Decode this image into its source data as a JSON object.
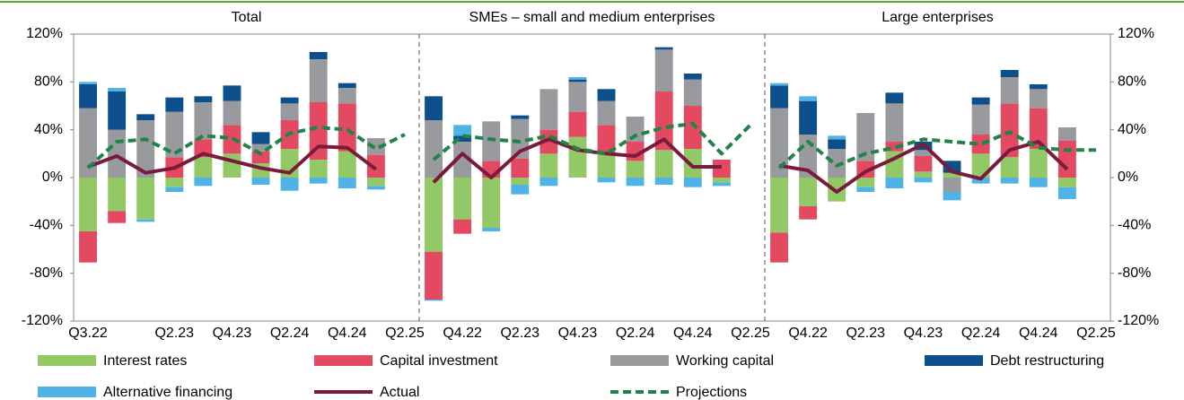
{
  "chart_data": [
    {
      "type": "bar",
      "title": "Total",
      "categories": [
        "Q3.22",
        null,
        null,
        "Q2.23",
        null,
        "Q4.23",
        null,
        "Q2.24",
        null,
        "Q4.24",
        null,
        "Q2.25"
      ],
      "ylim": [
        -120,
        120
      ],
      "yticks": [
        {
          "value": -120,
          "label": "-120%"
        },
        {
          "value": -80,
          "label": "-80%"
        },
        {
          "value": -40,
          "label": "-40%"
        },
        {
          "value": 0,
          "label": "0%"
        },
        {
          "value": 40,
          "label": "40%"
        },
        {
          "value": 80,
          "label": "80%"
        },
        {
          "value": 120,
          "label": "120%"
        }
      ],
      "series": [
        {
          "name": "Interest rates",
          "color": "#92c966",
          "values": [
            -45,
            -28,
            -35,
            -8,
            17,
            20,
            12,
            24,
            15,
            22,
            -7,
            null
          ]
        },
        {
          "name": "Capital investment",
          "color": "#e34a61",
          "values": [
            -26,
            -10,
            0,
            17,
            15,
            24,
            10,
            24,
            48,
            40,
            19,
            null
          ]
        },
        {
          "name": "Working capital",
          "color": "#999a9e",
          "values": [
            58,
            40,
            48,
            38,
            31,
            20,
            6,
            14,
            36,
            13,
            14,
            null
          ]
        },
        {
          "name": "Debt restructuring",
          "color": "#0d4f8b",
          "values": [
            20,
            32,
            5,
            12,
            5,
            13,
            10,
            5,
            6,
            4,
            0,
            null
          ]
        },
        {
          "name": "Alternative financing",
          "color": "#4fb3e6",
          "values": [
            2,
            3,
            -2,
            -4,
            -7,
            0,
            -6,
            -11,
            -5,
            -9,
            -3,
            null
          ]
        },
        {
          "name": "Actual",
          "color": "#7a1a3c",
          "type": "line",
          "values": [
            9,
            18,
            4,
            8,
            20,
            14,
            8,
            4,
            26,
            25,
            7,
            null
          ]
        },
        {
          "name": "Projections",
          "color": "#1e8449",
          "type": "line",
          "dash": true,
          "values": [
            8,
            30,
            32,
            20,
            35,
            33,
            20,
            37,
            42,
            40,
            24,
            36
          ]
        }
      ]
    },
    {
      "type": "bar",
      "title": "SMEs – small and medium enterprises",
      "categories": [
        null,
        "Q4.22",
        null,
        "Q2.23",
        null,
        "Q4.23",
        null,
        "Q2.24",
        null,
        "Q4.24",
        null,
        "Q2.25"
      ],
      "series": [
        {
          "values": [
            -62,
            -35,
            -42,
            -6,
            20,
            34,
            20,
            14,
            23,
            24,
            -4,
            null
          ]
        },
        {
          "values": [
            -40,
            -12,
            14,
            16,
            20,
            21,
            24,
            16,
            49,
            36,
            15,
            null
          ]
        },
        {
          "values": [
            48,
            30,
            33,
            33,
            34,
            25,
            20,
            21,
            35,
            22,
            0,
            null
          ]
        },
        {
          "values": [
            20,
            5,
            0,
            3,
            0,
            2,
            10,
            0,
            2,
            5,
            0,
            null
          ]
        },
        {
          "values": [
            -1,
            9,
            -3,
            -8,
            -7,
            2,
            -4,
            -7,
            -6,
            -8,
            -3,
            null
          ]
        },
        {
          "values": [
            -4,
            20,
            0,
            22,
            32,
            23,
            20,
            18,
            32,
            9,
            9,
            null
          ]
        },
        {
          "values": [
            15,
            35,
            32,
            30,
            35,
            24,
            20,
            35,
            42,
            45,
            20,
            44
          ]
        }
      ]
    },
    {
      "type": "bar",
      "title": "Large enterprises",
      "categories": [
        null,
        "Q4.22",
        null,
        "Q2.23",
        null,
        "Q4.23",
        null,
        "Q2.24",
        null,
        "Q4.24",
        null,
        "Q2.25"
      ],
      "series": [
        {
          "values": [
            -46,
            -24,
            -20,
            -8,
            22,
            5,
            4,
            20,
            17,
            24,
            -8,
            null
          ]
        },
        {
          "values": [
            -25,
            -11,
            0,
            14,
            8,
            13,
            0,
            16,
            45,
            34,
            31,
            null
          ]
        },
        {
          "values": [
            58,
            36,
            24,
            40,
            32,
            5,
            -12,
            25,
            22,
            16,
            11,
            null
          ]
        },
        {
          "values": [
            19,
            28,
            8,
            0,
            9,
            7,
            10,
            6,
            6,
            4,
            0,
            null
          ]
        },
        {
          "values": [
            2,
            4,
            3,
            -4,
            -9,
            -4,
            -7,
            -5,
            -5,
            -8,
            -10,
            null
          ]
        },
        {
          "values": [
            10,
            6,
            -12,
            5,
            16,
            28,
            5,
            -1,
            23,
            30,
            7,
            null
          ]
        },
        {
          "values": [
            8,
            30,
            10,
            20,
            25,
            32,
            30,
            28,
            38,
            25,
            23,
            23
          ]
        }
      ]
    }
  ]
}
